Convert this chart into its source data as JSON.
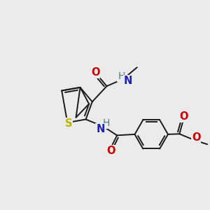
{
  "bg_color": "#ebebeb",
  "bond_color": "#1a1a1a",
  "bond_width": 1.4,
  "figsize": [
    3.0,
    3.0
  ],
  "dpi": 100,
  "atoms": {
    "S": {
      "color": "#b8b800",
      "fontsize": 10.5,
      "fontweight": "bold"
    },
    "N": {
      "color": "#2020bb",
      "fontsize": 10.5,
      "fontweight": "bold"
    },
    "O": {
      "color": "#cc0000",
      "fontsize": 10.5,
      "fontweight": "bold"
    },
    "H_N": {
      "color": "#408080",
      "fontsize": 10.5,
      "fontweight": "bold"
    }
  },
  "scale": 1.0
}
